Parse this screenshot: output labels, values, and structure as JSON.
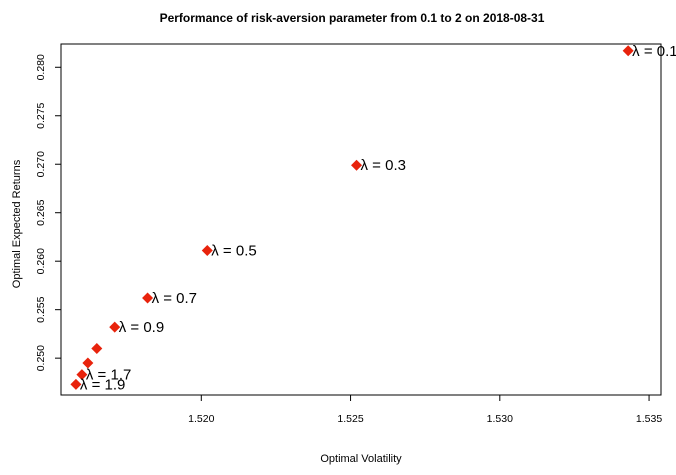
{
  "chart_data": {
    "type": "scatter",
    "title": "Performance of risk-aversion parameter from 0.1 to 2 on 2018-08-31",
    "xlabel": "Optimal Volatility",
    "ylabel": "Optimal Expected Returns",
    "xlim": [
      1.5153,
      1.5354
    ],
    "ylim": [
      0.2462,
      0.2824
    ],
    "x_ticks": [
      1.52,
      1.525,
      1.53,
      1.535
    ],
    "x_tick_labels": [
      "1.520",
      "1.525",
      "1.530",
      "1.535"
    ],
    "y_ticks": [
      0.25,
      0.255,
      0.26,
      0.265,
      0.27,
      0.275,
      0.28
    ],
    "y_tick_labels": [
      "0.250",
      "0.255",
      "0.260",
      "0.265",
      "0.270",
      "0.275",
      "0.280"
    ],
    "grid": false,
    "marker": "diamond",
    "marker_color": "#e8230c",
    "points": [
      {
        "x": 1.5343,
        "y": 0.2817,
        "label": "λ = 0.1"
      },
      {
        "x": 1.5252,
        "y": 0.2699,
        "label": "λ = 0.3"
      },
      {
        "x": 1.5202,
        "y": 0.2611,
        "label": "λ = 0.5"
      },
      {
        "x": 1.5182,
        "y": 0.2562,
        "label": "λ = 0.7"
      },
      {
        "x": 1.5171,
        "y": 0.2532,
        "label": "λ = 0.9"
      },
      {
        "x": 1.5165,
        "y": 0.251,
        "label": ""
      },
      {
        "x": 1.5162,
        "y": 0.2495,
        "label": ""
      },
      {
        "x": 1.516,
        "y": 0.2483,
        "label": "λ = 1.7"
      },
      {
        "x": 1.5158,
        "y": 0.2473,
        "label": "λ = 1.9"
      }
    ]
  }
}
